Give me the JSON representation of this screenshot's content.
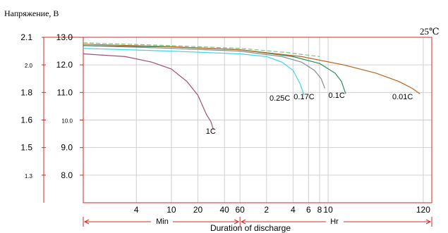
{
  "chart_data": {
    "type": "line",
    "title": "",
    "ylabel": "Напряжение, В",
    "xlabel": "Duration of discharge",
    "temperature_label": "25℃",
    "x_unit_labels": {
      "minutes": "Min",
      "hours": "Hr"
    },
    "x_axis": {
      "scale": "log",
      "unit": "minutes",
      "ticks": [
        {
          "label": "4",
          "minutes": 4
        },
        {
          "label": "10",
          "minutes": 10
        },
        {
          "label": "20",
          "minutes": 20
        },
        {
          "label": "40",
          "minutes": 40
        },
        {
          "label": "60",
          "minutes": 60
        },
        {
          "label": "2",
          "minutes": 120
        },
        {
          "label": "4",
          "minutes": 240
        },
        {
          "label": "6",
          "minutes": 360
        },
        {
          "label": "8",
          "minutes": 480
        },
        {
          "label": "10",
          "minutes": 600
        },
        {
          "label": "120",
          "minutes": 7200
        }
      ]
    },
    "y_axis_battery": {
      "ylim": [
        7.0,
        13.0
      ],
      "ticks": [
        "13.0",
        "12.0",
        "11.0",
        "10.0",
        "9.0",
        "8.0"
      ]
    },
    "y_axis_cell": {
      "ticks": [
        {
          "label": "2.1",
          "battery_volts": 13.0
        },
        {
          "label": "2.0",
          "battery_volts": 12.0
        },
        {
          "label": "1.8",
          "battery_volts": 11.0
        },
        {
          "label": "1.6",
          "battery_volts": 10.0
        },
        {
          "label": "1.5",
          "battery_volts": 9.0
        },
        {
          "label": "1.3",
          "battery_volts": 8.0
        }
      ]
    },
    "grid": true,
    "series": [
      {
        "name": "1C",
        "color": "#a04f7a",
        "points": [
          [
            1,
            12.4
          ],
          [
            3,
            12.3
          ],
          [
            6,
            12.1
          ],
          [
            10,
            11.85
          ],
          [
            15,
            11.4
          ],
          [
            20,
            10.9
          ],
          [
            25,
            10.2
          ],
          [
            28,
            9.95
          ],
          [
            30,
            9.65
          ]
        ]
      },
      {
        "name": "0.25C",
        "color": "#3fd6e6",
        "points": [
          [
            1,
            12.6
          ],
          [
            10,
            12.5
          ],
          [
            60,
            12.4
          ],
          [
            120,
            12.3
          ],
          [
            180,
            12.1
          ],
          [
            240,
            11.8
          ],
          [
            290,
            11.3
          ],
          [
            320,
            10.9
          ]
        ]
      },
      {
        "name": "0.17C",
        "color": "#8a8a8a",
        "points": [
          [
            1,
            12.7
          ],
          [
            10,
            12.6
          ],
          [
            60,
            12.5
          ],
          [
            180,
            12.3
          ],
          [
            300,
            12.1
          ],
          [
            420,
            11.8
          ],
          [
            500,
            11.5
          ],
          [
            550,
            11.15
          ]
        ]
      },
      {
        "name": "0.1C",
        "color": "#2e8b57",
        "points": [
          [
            1,
            12.7
          ],
          [
            10,
            12.65
          ],
          [
            60,
            12.55
          ],
          [
            240,
            12.3
          ],
          [
            480,
            12.05
          ],
          [
            720,
            11.7
          ],
          [
            850,
            11.4
          ],
          [
            950,
            10.95
          ]
        ]
      },
      {
        "name": "0.01C",
        "color": "#b5651d",
        "points": [
          [
            1,
            12.75
          ],
          [
            10,
            12.66
          ],
          [
            60,
            12.55
          ],
          [
            300,
            12.3
          ],
          [
            900,
            12.0
          ],
          [
            2100,
            11.7
          ],
          [
            3800,
            11.4
          ],
          [
            5400,
            11.15
          ],
          [
            6600,
            10.95
          ]
        ]
      },
      {
        "name": "",
        "color": "#7bc47f",
        "dashed": true,
        "points": [
          [
            1,
            12.8
          ],
          [
            10,
            12.7
          ],
          [
            60,
            12.6
          ],
          [
            200,
            12.45
          ],
          [
            480,
            12.3
          ]
        ]
      }
    ],
    "labels": [
      {
        "text": "1C",
        "at": [
          28,
          9.5
        ]
      },
      {
        "text": "0.25C",
        "at": [
          170,
          10.7
        ]
      },
      {
        "text": "0.17C",
        "at": [
          320,
          10.75
        ]
      },
      {
        "text": "0.1C",
        "at": [
          750,
          10.8
        ]
      },
      {
        "text": "0.01C",
        "at": [
          4200,
          10.75
        ]
      }
    ]
  }
}
